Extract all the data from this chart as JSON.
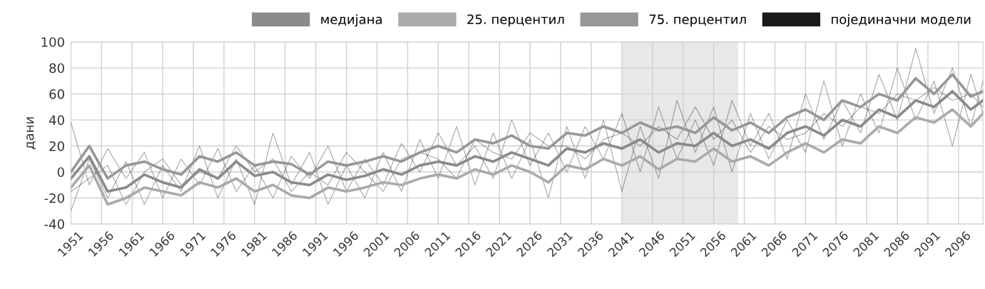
{
  "chart_data": {
    "type": "line",
    "ylabel": "дани",
    "x": [
      1951,
      1954,
      1957,
      1960,
      1963,
      1966,
      1969,
      1972,
      1975,
      1978,
      1981,
      1984,
      1987,
      1990,
      1993,
      1996,
      1999,
      2002,
      2005,
      2008,
      2011,
      2014,
      2017,
      2020,
      2023,
      2026,
      2029,
      2032,
      2035,
      2038,
      2041,
      2044,
      2047,
      2050,
      2053,
      2056,
      2059,
      2062,
      2065,
      2068,
      2071,
      2074,
      2077,
      2080,
      2083,
      2086,
      2089,
      2092,
      2095,
      2098,
      2100
    ],
    "series": [
      {
        "name": "појединачни модели",
        "color": "#1a1a1a",
        "values": [
          38,
          -10,
          18,
          -5,
          15,
          -20,
          10,
          -10,
          18,
          -15,
          5,
          -20,
          12,
          -5,
          20,
          -15,
          10,
          -10,
          22,
          0,
          30,
          5,
          20,
          -5,
          40,
          5,
          30,
          0,
          35,
          10,
          45,
          0,
          50,
          10,
          40,
          5,
          55,
          20,
          45,
          10,
          60,
          25,
          55,
          30,
          75,
          40,
          95,
          45,
          80,
          35,
          70
        ]
      },
      {
        "color": "#1a1a1a",
        "values": [
          -30,
          10,
          -20,
          8,
          -25,
          5,
          -15,
          20,
          -20,
          10,
          -25,
          30,
          -10,
          15,
          -25,
          5,
          -20,
          15,
          -15,
          25,
          -5,
          35,
          -10,
          30,
          -5,
          25,
          -20,
          35,
          -5,
          40,
          -15,
          35,
          -5,
          55,
          15,
          50,
          0,
          45,
          10,
          40,
          15,
          70,
          20,
          60,
          30,
          80,
          40,
          70,
          20,
          75,
          45
        ]
      },
      {
        "color": "#1a1a1a",
        "values": [
          -15,
          -5,
          5,
          -25,
          0,
          10,
          -10,
          0,
          -5,
          20,
          0,
          10,
          -15,
          0,
          -10,
          15,
          0,
          -15,
          10,
          15,
          10,
          -5,
          25,
          15,
          10,
          30,
          20,
          20,
          10,
          25,
          30,
          20,
          35,
          25,
          50,
          25,
          40,
          15,
          35,
          25,
          30,
          45,
          35,
          50,
          45,
          60,
          55,
          65,
          55,
          60,
          50
        ]
      },
      {
        "name": "75. перцентил",
        "color": "#979797",
        "values": [
          0,
          20,
          -5,
          5,
          8,
          2,
          -2,
          12,
          8,
          15,
          5,
          8,
          6,
          -2,
          8,
          5,
          8,
          12,
          8,
          15,
          20,
          15,
          25,
          22,
          28,
          20,
          18,
          30,
          28,
          35,
          30,
          38,
          32,
          35,
          30,
          42,
          32,
          38,
          30,
          42,
          48,
          40,
          55,
          50,
          60,
          55,
          72,
          60,
          75,
          58,
          62
        ]
      },
      {
        "name": "25. перцентил",
        "color": "#aaaaaa",
        "values": [
          -12,
          5,
          -25,
          -20,
          -12,
          -15,
          -18,
          -8,
          -12,
          -5,
          -15,
          -10,
          -18,
          -20,
          -12,
          -15,
          -12,
          -8,
          -10,
          -5,
          -2,
          -5,
          2,
          -2,
          5,
          0,
          -8,
          5,
          2,
          10,
          5,
          12,
          2,
          10,
          8,
          18,
          8,
          12,
          5,
          15,
          22,
          15,
          25,
          22,
          35,
          30,
          42,
          38,
          48,
          35,
          45
        ]
      },
      {
        "name": "медијана",
        "color": "#8a8a8a",
        "values": [
          -5,
          12,
          -15,
          -12,
          -2,
          -8,
          -12,
          2,
          -5,
          8,
          -3,
          0,
          -8,
          -10,
          -2,
          -6,
          -3,
          2,
          -2,
          5,
          8,
          5,
          12,
          8,
          15,
          10,
          5,
          18,
          15,
          22,
          18,
          25,
          15,
          22,
          20,
          30,
          20,
          25,
          18,
          30,
          35,
          28,
          40,
          35,
          48,
          42,
          55,
          50,
          62,
          48,
          55
        ]
      }
    ],
    "xlim": [
      1951,
      2100
    ],
    "xticks": [
      1951,
      1956,
      1961,
      1966,
      1971,
      1976,
      1981,
      1986,
      1991,
      1996,
      2001,
      2006,
      2011,
      2016,
      2021,
      2026,
      2031,
      2036,
      2041,
      2046,
      2051,
      2056,
      2061,
      2066,
      2071,
      2076,
      2081,
      2086,
      2091,
      2096
    ],
    "ylim": [
      -40,
      100
    ],
    "yticks": [
      -40,
      -20,
      0,
      20,
      40,
      60,
      80,
      100
    ],
    "bands": [
      {
        "axis": "x",
        "from": 2041,
        "to": 2060,
        "color": "#e8e8e8"
      }
    ],
    "grid": true,
    "legend": "top right",
    "line_style": "solid",
    "marker": "none"
  }
}
